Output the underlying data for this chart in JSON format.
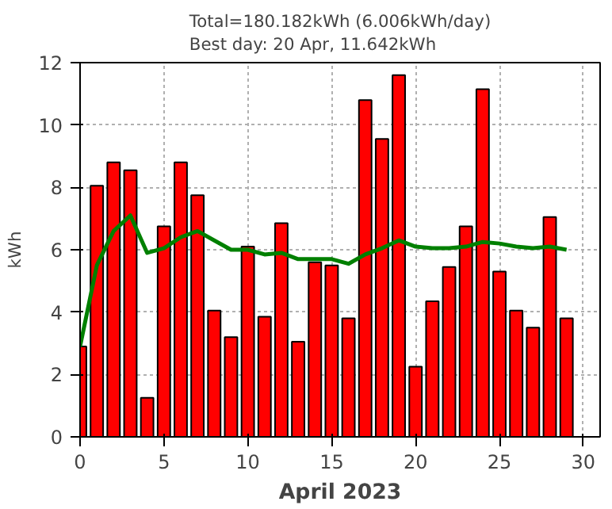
{
  "chart_data": {
    "type": "bar",
    "title": "Total=180.182kWh (6.006kWh/day)\nBest day: 20 Apr, 11.642kWh",
    "xlabel": "April 2023",
    "ylabel": "kWh",
    "x": [
      0,
      1,
      2,
      3,
      4,
      5,
      6,
      7,
      8,
      9,
      10,
      11,
      12,
      13,
      14,
      15,
      16,
      17,
      18,
      19,
      20,
      21,
      22,
      23,
      24,
      25,
      26,
      27,
      28,
      29
    ],
    "series": [
      {
        "color": "#ff0000",
        "values": [
          2.9,
          8.05,
          8.8,
          8.55,
          1.25,
          6.75,
          8.8,
          7.75,
          4.05,
          3.2,
          6.1,
          3.85,
          6.85,
          3.05,
          5.6,
          5.5,
          3.8,
          10.8,
          9.55,
          11.6,
          2.25,
          4.35,
          5.45,
          6.75,
          11.15,
          5.3,
          4.05,
          3.5,
          7.05,
          3.8
        ]
      },
      {
        "type": "line",
        "color": "#008000",
        "values": [
          2.9,
          5.5,
          6.6,
          7.1,
          5.9,
          6.05,
          6.4,
          6.6,
          6.3,
          6.0,
          6.0,
          5.85,
          5.9,
          5.7,
          5.7,
          5.7,
          5.55,
          5.85,
          6.05,
          6.3,
          6.1,
          6.05,
          6.05,
          6.1,
          6.25,
          6.2,
          6.1,
          6.05,
          6.1,
          6.0
        ]
      }
    ],
    "xlim": [
      0,
      31
    ],
    "ylim": [
      0,
      12
    ],
    "xticks": [
      0,
      5,
      10,
      15,
      20,
      25,
      30
    ],
    "yticks": [
      0,
      2,
      4,
      6,
      8,
      10,
      12
    ],
    "grid": true
  }
}
